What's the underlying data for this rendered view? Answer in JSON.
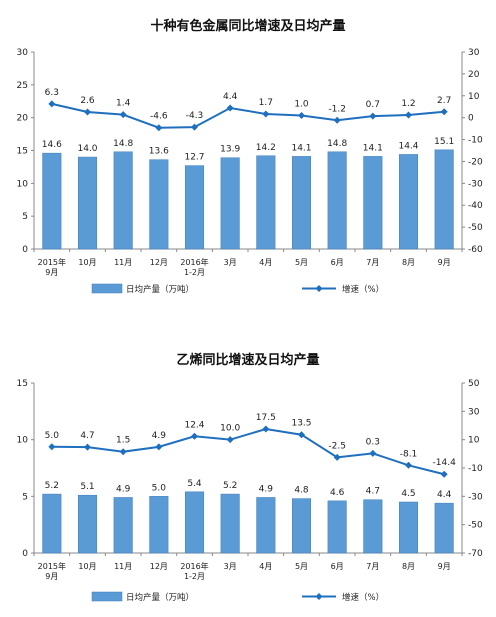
{
  "chart_data": [
    {
      "type": "bar",
      "title": "十种有色金属同比增速及日均产量",
      "categories": [
        [
          "2015年",
          "9月"
        ],
        [
          "10月"
        ],
        [
          "11月"
        ],
        [
          "12月"
        ],
        [
          "2016年",
          "1-2月"
        ],
        [
          "3月"
        ],
        [
          "4月"
        ],
        [
          "5月"
        ],
        [
          "6月"
        ],
        [
          "7月"
        ],
        [
          "8月"
        ],
        [
          "9月"
        ]
      ],
      "series": [
        {
          "name": "日均产量（万吨）",
          "type": "bar",
          "axis": "left",
          "values": [
            14.6,
            14.0,
            14.8,
            13.6,
            12.7,
            13.9,
            14.2,
            14.1,
            14.8,
            14.1,
            14.4,
            15.1
          ],
          "labels": [
            "14.6",
            "14.0",
            "14.8",
            "13.6",
            "12.7",
            "13.9",
            "14.2",
            "14.1",
            "14.8",
            "14.1",
            "14.4",
            "15.1"
          ]
        },
        {
          "name": "增速（%）",
          "type": "line",
          "axis": "right",
          "values": [
            6.3,
            2.6,
            1.4,
            -4.6,
            -4.3,
            4.4,
            1.7,
            1.0,
            -1.2,
            0.7,
            1.2,
            2.7
          ],
          "labels": [
            "6.3",
            "2.6",
            "1.4",
            "-4.6",
            "-4.3",
            "4.4",
            "1.7",
            "1.0",
            "-1.2",
            "0.7",
            "1.2",
            "2.7"
          ]
        }
      ],
      "ylim_left": [
        0,
        30
      ],
      "yticks_left": [
        "0",
        "5",
        "10",
        "15",
        "20",
        "25",
        "30"
      ],
      "ylim_right": [
        -60,
        30
      ],
      "yticks_right": [
        "-60",
        "-50",
        "-40",
        "-30",
        "-20",
        "-10",
        "0",
        "10",
        "20",
        "30"
      ],
      "legend_placement": "bottom",
      "grid": false,
      "colors": {
        "bar": "#5b9bd5",
        "line": "#1f6fbf"
      }
    },
    {
      "type": "bar",
      "title": "乙烯同比增速及日均产量",
      "categories": [
        [
          "2015年",
          "9月"
        ],
        [
          "10月"
        ],
        [
          "11月"
        ],
        [
          "12月"
        ],
        [
          "2016年",
          "1-2月"
        ],
        [
          "3月"
        ],
        [
          "4月"
        ],
        [
          "5月"
        ],
        [
          "6月"
        ],
        [
          "7月"
        ],
        [
          "8月"
        ],
        [
          "9月"
        ]
      ],
      "series": [
        {
          "name": "日均产量（万吨）",
          "type": "bar",
          "axis": "left",
          "values": [
            5.2,
            5.1,
            4.9,
            5.0,
            5.4,
            5.2,
            4.9,
            4.8,
            4.6,
            4.7,
            4.5,
            4.4
          ],
          "labels": [
            "5.2",
            "5.1",
            "4.9",
            "5.0",
            "5.4",
            "5.2",
            "4.9",
            "4.8",
            "4.6",
            "4.7",
            "4.5",
            "4.4"
          ]
        },
        {
          "name": "增速（%）",
          "type": "line",
          "axis": "right",
          "values": [
            5.0,
            4.7,
            1.5,
            4.9,
            12.4,
            10.0,
            17.5,
            13.5,
            -2.5,
            0.3,
            -8.1,
            -14.4
          ],
          "labels": [
            "5.0",
            "4.7",
            "1.5",
            "4.9",
            "12.4",
            "10.0",
            "17.5",
            "13.5",
            "-2.5",
            "0.3",
            "-8.1",
            "-14.4"
          ]
        }
      ],
      "ylim_left": [
        0,
        15
      ],
      "yticks_left": [
        "0",
        "5",
        "10",
        "15"
      ],
      "ylim_right": [
        -70,
        50
      ],
      "yticks_right": [
        "-70",
        "-50",
        "-30",
        "-10",
        "10",
        "30",
        "50"
      ],
      "legend_placement": "bottom",
      "grid": false,
      "colors": {
        "bar": "#5b9bd5",
        "line": "#1f6fbf"
      }
    }
  ]
}
